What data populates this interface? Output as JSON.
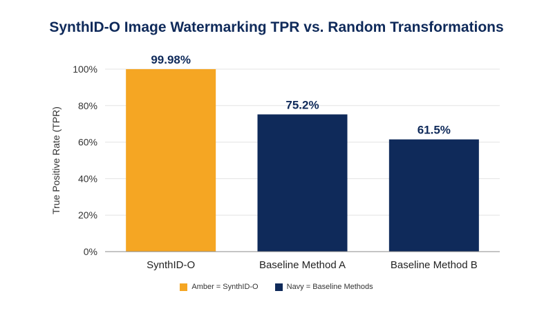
{
  "chart_data": {
    "type": "bar",
    "title": "SynthID-O Image Watermarking TPR vs. Random Transformations",
    "xlabel": "",
    "ylabel": "True Positive Rate (TPR)",
    "ylim": [
      0,
      100
    ],
    "yticks": [
      "0%",
      "20%",
      "40%",
      "60%",
      "80%",
      "100%"
    ],
    "categories": [
      "SynthID-O",
      "Baseline Method A",
      "Baseline Method B"
    ],
    "values": [
      99.98,
      75.2,
      61.5
    ],
    "value_labels": [
      "99.98%",
      "75.2%",
      "61.5%"
    ],
    "bar_colors": [
      "#f5a623",
      "#0f2a5a",
      "#0f2a5a"
    ],
    "grid": true,
    "legend_position": "bottom",
    "legend": [
      {
        "label": "Amber = SynthID-O",
        "color": "#f5a623"
      },
      {
        "label": "Navy = Baseline Methods",
        "color": "#0f2a5a"
      }
    ]
  }
}
